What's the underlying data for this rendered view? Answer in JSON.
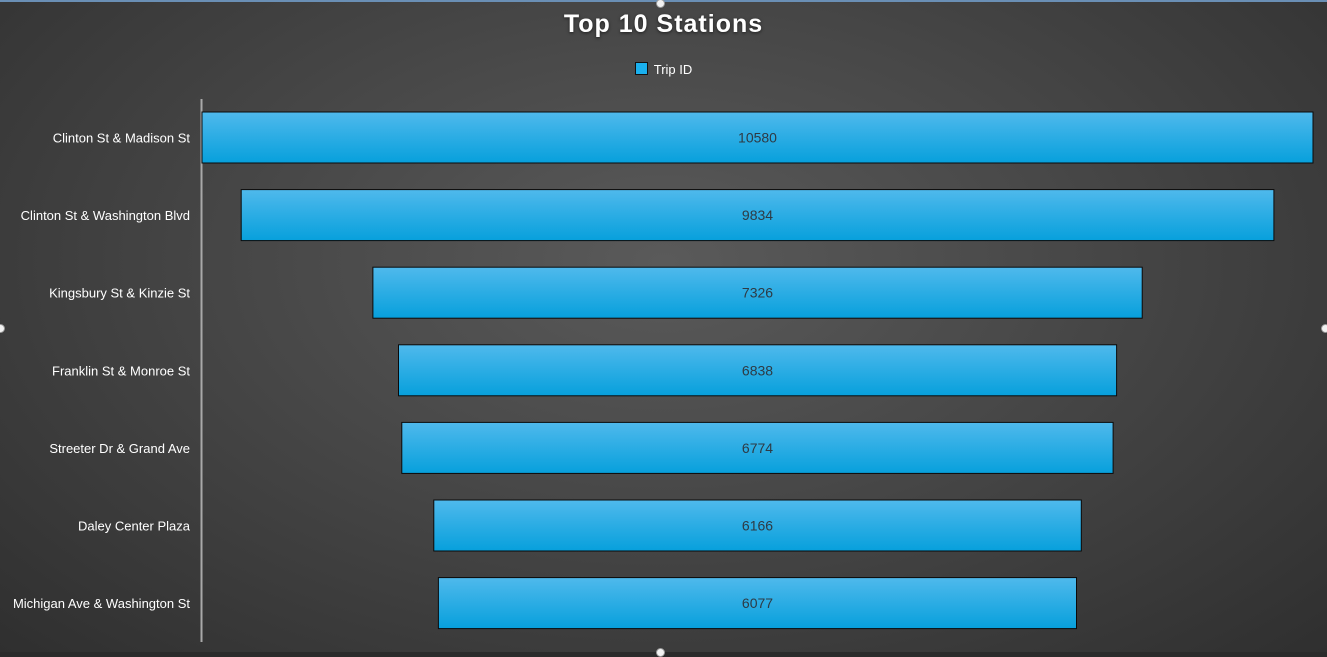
{
  "chart_data": {
    "type": "bar",
    "orientation": "horizontal-funnel",
    "title": "Top 10 Stations",
    "categories": [
      "Clinton St & Madison St",
      "Clinton St & Washington Blvd",
      "Kingsbury St & Kinzie St",
      "Franklin St & Monroe St",
      "Streeter Dr & Grand Ave",
      "Daley Center Plaza",
      "Michigan Ave & Washington St"
    ],
    "series": [
      {
        "name": "Trip ID",
        "values": [
          10580,
          9834,
          7326,
          6838,
          6774,
          6166,
          6077
        ],
        "color": "#1ab0ee"
      }
    ],
    "legend": "top",
    "grid": false,
    "data_labels": true
  }
}
